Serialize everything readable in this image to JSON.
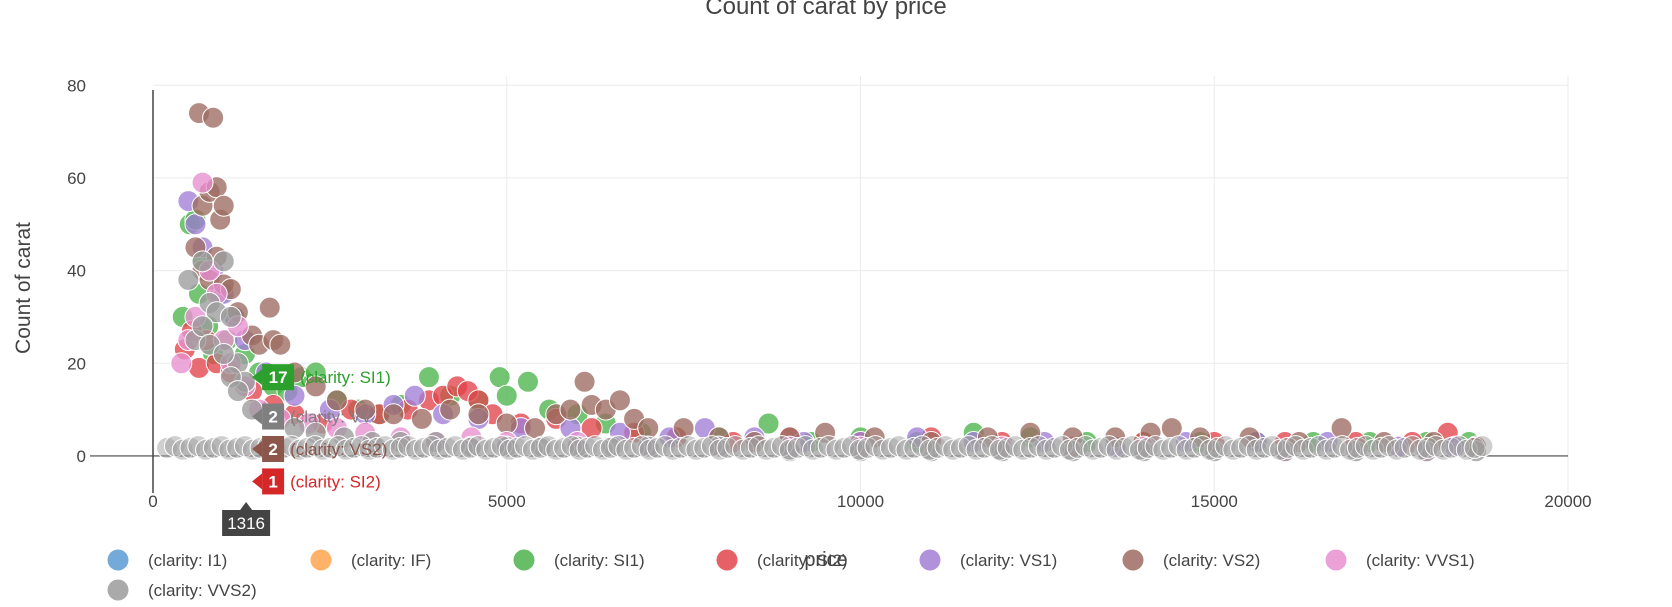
{
  "chart_data": {
    "type": "scatter",
    "title": "Count of carat by price",
    "xlabel": "price",
    "ylabel": "Count of carat",
    "xlim": [
      0,
      20000
    ],
    "ylim": [
      -8,
      82
    ],
    "x_ticks": [
      0,
      5000,
      10000,
      15000,
      20000
    ],
    "y_ticks": [
      0,
      20,
      40,
      60,
      80
    ],
    "grid": true,
    "legend_position": "bottom",
    "series": [
      {
        "name": "(clarity: I1)",
        "color": "#5a9bd4",
        "points": []
      },
      {
        "name": "(clarity: IF)",
        "color": "#ffa64d",
        "points": []
      },
      {
        "name": "(clarity: SI1)",
        "color": "#4cb34c",
        "points": [
          [
            420,
            30
          ],
          [
            520,
            50
          ],
          [
            600,
            51
          ],
          [
            650,
            35
          ],
          [
            700,
            42
          ],
          [
            780,
            28
          ],
          [
            850,
            22
          ],
          [
            950,
            35
          ],
          [
            1050,
            25
          ],
          [
            1150,
            30
          ],
          [
            1300,
            22
          ],
          [
            1500,
            18
          ],
          [
            1700,
            15
          ],
          [
            1900,
            14
          ],
          [
            2100,
            17
          ],
          [
            2300,
            18
          ],
          [
            2600,
            12
          ],
          [
            2900,
            10
          ],
          [
            3200,
            9
          ],
          [
            3500,
            11
          ],
          [
            3900,
            17
          ],
          [
            4200,
            13
          ],
          [
            4600,
            12
          ],
          [
            4900,
            17
          ],
          [
            5000,
            13
          ],
          [
            5300,
            16
          ],
          [
            5600,
            10
          ],
          [
            6000,
            9
          ],
          [
            6400,
            7
          ],
          [
            6900,
            5
          ],
          [
            7400,
            4
          ],
          [
            8000,
            4
          ],
          [
            8700,
            7
          ],
          [
            9300,
            3
          ],
          [
            10000,
            4
          ],
          [
            10800,
            3
          ],
          [
            11600,
            5
          ],
          [
            12400,
            4
          ],
          [
            13200,
            3
          ],
          [
            14000,
            3
          ],
          [
            14800,
            3
          ],
          [
            15600,
            3
          ],
          [
            16400,
            3
          ],
          [
            17200,
            3
          ],
          [
            18000,
            3
          ],
          [
            18600,
            3
          ]
        ]
      },
      {
        "name": "(clarity: SI2)",
        "color": "#e0444c",
        "points": [
          [
            450,
            23
          ],
          [
            550,
            27
          ],
          [
            650,
            19
          ],
          [
            750,
            25
          ],
          [
            900,
            20
          ],
          [
            1100,
            18
          ],
          [
            1400,
            14
          ],
          [
            1700,
            11
          ],
          [
            2000,
            9
          ],
          [
            2400,
            7
          ],
          [
            2800,
            10
          ],
          [
            3200,
            9
          ],
          [
            3600,
            10
          ],
          [
            3900,
            12
          ],
          [
            4100,
            13
          ],
          [
            4300,
            15
          ],
          [
            4450,
            14
          ],
          [
            4600,
            12
          ],
          [
            4800,
            9
          ],
          [
            5200,
            7
          ],
          [
            5700,
            8
          ],
          [
            6200,
            6
          ],
          [
            6800,
            5
          ],
          [
            7400,
            4
          ],
          [
            8200,
            3
          ],
          [
            9000,
            4
          ],
          [
            10000,
            3
          ],
          [
            11000,
            4
          ],
          [
            12000,
            3
          ],
          [
            13000,
            2
          ],
          [
            14000,
            3
          ],
          [
            15000,
            3
          ],
          [
            16000,
            3
          ],
          [
            17000,
            3
          ],
          [
            17800,
            3
          ],
          [
            18300,
            5
          ],
          [
            18700,
            2
          ]
        ]
      },
      {
        "name": "(clarity: VS1)",
        "color": "#a17ed6",
        "points": [
          [
            500,
            55
          ],
          [
            600,
            50
          ],
          [
            700,
            45
          ],
          [
            850,
            40
          ],
          [
            1000,
            35
          ],
          [
            1150,
            30
          ],
          [
            1300,
            25
          ],
          [
            1600,
            18
          ],
          [
            2000,
            13
          ],
          [
            2500,
            10
          ],
          [
            3000,
            9
          ],
          [
            3400,
            11
          ],
          [
            3700,
            13
          ],
          [
            4100,
            9
          ],
          [
            4600,
            8
          ],
          [
            5200,
            6
          ],
          [
            5900,
            6
          ],
          [
            6600,
            5
          ],
          [
            7300,
            4
          ],
          [
            7800,
            6
          ],
          [
            8500,
            4
          ],
          [
            9200,
            3
          ],
          [
            10000,
            3
          ],
          [
            10800,
            4
          ],
          [
            11600,
            3
          ],
          [
            12600,
            3
          ],
          [
            13600,
            2
          ],
          [
            14600,
            3
          ],
          [
            15600,
            3
          ],
          [
            16600,
            3
          ],
          [
            17600,
            2
          ],
          [
            18400,
            2
          ]
        ]
      },
      {
        "name": "(clarity: VS2)",
        "color": "#9c6b61",
        "points": [
          [
            650,
            74
          ],
          [
            850,
            73
          ],
          [
            700,
            54
          ],
          [
            800,
            57
          ],
          [
            900,
            58
          ],
          [
            950,
            51
          ],
          [
            1000,
            54
          ],
          [
            600,
            45
          ],
          [
            700,
            40
          ],
          [
            800,
            38
          ],
          [
            900,
            43
          ],
          [
            1000,
            37
          ],
          [
            1100,
            36
          ],
          [
            1200,
            31
          ],
          [
            1400,
            26
          ],
          [
            1650,
            32
          ],
          [
            1500,
            24
          ],
          [
            1700,
            25
          ],
          [
            1800,
            24
          ],
          [
            2000,
            18
          ],
          [
            2300,
            15
          ],
          [
            2600,
            12
          ],
          [
            3000,
            10
          ],
          [
            3400,
            9
          ],
          [
            3800,
            8
          ],
          [
            4200,
            10
          ],
          [
            4600,
            9
          ],
          [
            5000,
            7
          ],
          [
            5400,
            6
          ],
          [
            5700,
            9
          ],
          [
            5900,
            10
          ],
          [
            6100,
            16
          ],
          [
            6200,
            11
          ],
          [
            6400,
            10
          ],
          [
            6600,
            12
          ],
          [
            6800,
            8
          ],
          [
            7000,
            6
          ],
          [
            7500,
            6
          ],
          [
            8000,
            4
          ],
          [
            8500,
            3
          ],
          [
            9000,
            4
          ],
          [
            9500,
            5
          ],
          [
            10200,
            4
          ],
          [
            11000,
            3
          ],
          [
            11800,
            4
          ],
          [
            12400,
            5
          ],
          [
            13000,
            4
          ],
          [
            13600,
            4
          ],
          [
            14100,
            5
          ],
          [
            14400,
            6
          ],
          [
            14800,
            4
          ],
          [
            15500,
            4
          ],
          [
            16200,
            3
          ],
          [
            16800,
            6
          ],
          [
            17400,
            3
          ],
          [
            18100,
            3
          ],
          [
            18700,
            2
          ]
        ]
      },
      {
        "name": "(clarity: VVS1)",
        "color": "#e88fcf",
        "points": [
          [
            400,
            20
          ],
          [
            500,
            25
          ],
          [
            600,
            30
          ],
          [
            700,
            59
          ],
          [
            800,
            40
          ],
          [
            900,
            35
          ],
          [
            1000,
            25
          ],
          [
            1100,
            20
          ],
          [
            1200,
            28
          ],
          [
            1300,
            15
          ],
          [
            1500,
            10
          ],
          [
            1800,
            8
          ],
          [
            2200,
            7
          ],
          [
            2600,
            6
          ],
          [
            3000,
            5
          ],
          [
            3500,
            4
          ],
          [
            4000,
            3
          ],
          [
            4500,
            4
          ],
          [
            5000,
            3
          ],
          [
            6000,
            3
          ],
          [
            7000,
            2
          ],
          [
            8000,
            2
          ],
          [
            9000,
            2
          ],
          [
            10000,
            2
          ],
          [
            12000,
            2
          ],
          [
            14000,
            2
          ],
          [
            16000,
            1
          ],
          [
            18000,
            1
          ]
        ]
      },
      {
        "name": "(clarity: VVS2)",
        "color": "#9b9b9b",
        "points": [
          [
            500,
            38
          ],
          [
            700,
            42
          ],
          [
            800,
            33
          ],
          [
            900,
            31
          ],
          [
            1000,
            42
          ],
          [
            1100,
            30
          ],
          [
            1200,
            20
          ],
          [
            1300,
            16
          ],
          [
            600,
            25
          ],
          [
            700,
            28
          ],
          [
            800,
            24
          ],
          [
            1000,
            22
          ],
          [
            1100,
            17
          ],
          [
            1200,
            14
          ],
          [
            1400,
            10
          ],
          [
            1700,
            8
          ],
          [
            2000,
            6
          ],
          [
            2300,
            5
          ],
          [
            2700,
            4
          ],
          [
            3100,
            3
          ],
          [
            3500,
            3
          ],
          [
            4000,
            3
          ],
          [
            4500,
            2
          ],
          [
            5000,
            2
          ],
          [
            5500,
            2
          ],
          [
            6000,
            2
          ],
          [
            6500,
            2
          ],
          [
            7000,
            2
          ],
          [
            8000,
            2
          ],
          [
            9000,
            1
          ],
          [
            10000,
            1
          ],
          [
            11000,
            1
          ],
          [
            12000,
            1
          ],
          [
            13000,
            1
          ],
          [
            14000,
            1
          ],
          [
            15000,
            1
          ],
          [
            16000,
            1
          ],
          [
            17000,
            1
          ],
          [
            18000,
            1
          ],
          [
            18700,
            1
          ]
        ]
      }
    ],
    "hover": {
      "x_label": "1316",
      "items": [
        {
          "value": "17",
          "label": "(clarity: SI1)",
          "color": "#2ca02c",
          "y": 17
        },
        {
          "value": "2",
          "label": "(clarity: VV...",
          "color": "#7f7f7f",
          "y": 8.5
        },
        {
          "value": "2",
          "label": "(clarity: VS2)",
          "color": "#8c564b",
          "y": 1.5
        },
        {
          "value": "1",
          "label": "(clarity: SI2)",
          "color": "#d62728",
          "y": -5.5
        }
      ]
    }
  }
}
